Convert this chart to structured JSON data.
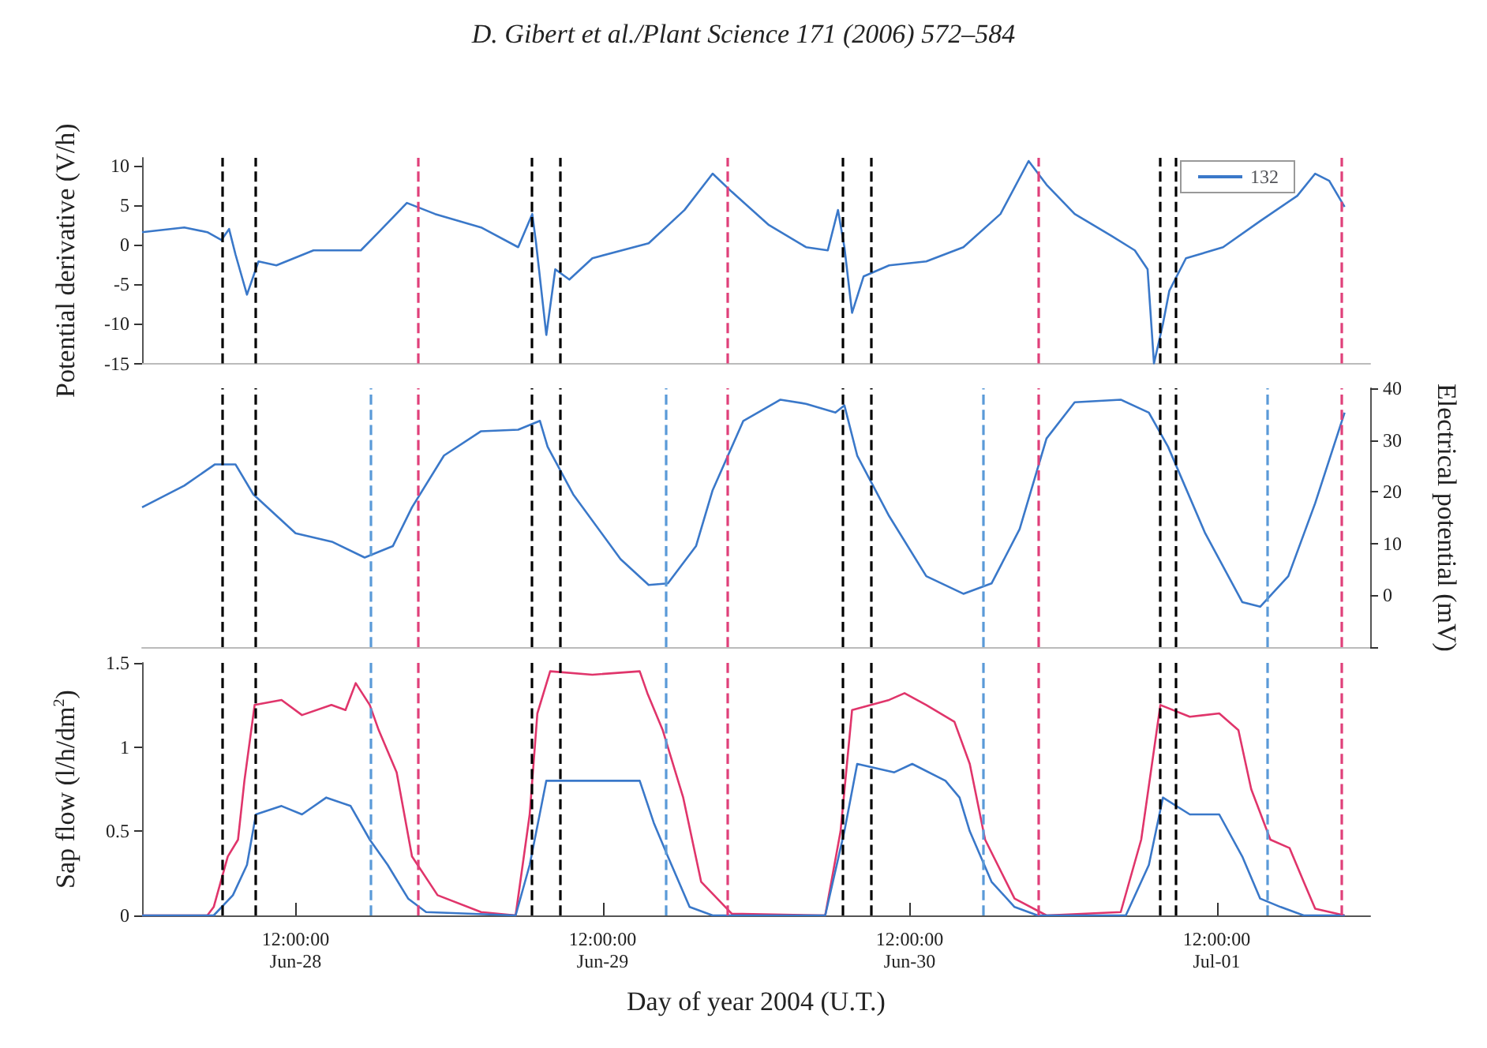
{
  "chart_data": [
    {
      "type": "line",
      "title": "D. Gibert et al./Plant Science 171 (2006) 572–584",
      "ylabel": "Potential derivative (V/h)",
      "xlim": [
        "2004-06-28T00:00",
        "2004-07-02T00:00"
      ],
      "ylim": [
        -15,
        11
      ],
      "yticks": [
        -15,
        -10,
        -5,
        0,
        5,
        10
      ],
      "tick_labels": "y",
      "legend": "top right",
      "x": [
        "2004-06-28T00:00",
        "2004-06-28T03:18",
        "2004-06-28T05:06",
        "2004-06-28T06:12",
        "2004-06-28T06:48",
        "2004-06-28T07:18",
        "2004-06-28T08:12",
        "2004-06-28T09:06",
        "2004-06-28T10:30",
        "2004-06-28T13:24",
        "2004-06-28T17:06",
        "2004-06-28T18:30",
        "2004-06-28T20:42",
        "2004-06-28T22:54",
        "2004-06-29T02:30",
        "2004-06-29T05:24",
        "2004-06-29T06:30",
        "2004-06-29T06:48",
        "2004-06-29T07:36",
        "2004-06-29T08:18",
        "2004-06-29T09:24",
        "2004-06-29T11:12",
        "2004-06-29T15:36",
        "2004-06-29T18:24",
        "2004-06-29T20:36",
        "2004-06-29T22:06",
        "2004-06-30T01:00",
        "2004-06-30T03:54",
        "2004-06-30T05:36",
        "2004-06-30T06:24",
        "2004-06-30T06:54",
        "2004-06-30T07:30",
        "2004-06-30T08:24",
        "2004-06-30T10:24",
        "2004-06-30T13:18",
        "2004-06-30T16:12",
        "2004-06-30T19:06",
        "2004-06-30T21:18",
        "2004-06-30T22:42",
        "2004-07-01T00:54",
        "2004-07-01T03:48",
        "2004-07-01T05:36",
        "2004-07-01T06:36",
        "2004-07-01T07:06",
        "2004-07-01T07:48",
        "2004-07-01T08:18",
        "2004-07-01T09:36",
        "2004-07-01T12:30",
        "2004-07-01T15:24",
        "2004-07-01T18:18",
        "2004-07-01T19:42",
        "2004-07-01T20:48",
        "2004-07-01T22:00"
      ],
      "series": [
        {
          "name": "132",
          "color": "#3a78c9",
          "values": [
            1.6,
            2.2,
            1.6,
            0.6,
            2.0,
            -1.2,
            -6.3,
            -2.1,
            -2.6,
            -0.7,
            -0.7,
            1.6,
            5.3,
            3.9,
            2.2,
            -0.3,
            3.9,
            0.2,
            -11.4,
            -3.1,
            -4.4,
            -1.7,
            0.2,
            4.4,
            9.0,
            6.7,
            2.5,
            -0.3,
            -0.7,
            4.4,
            -0.3,
            -8.6,
            -4.0,
            -2.6,
            -2.1,
            -0.3,
            3.9,
            10.6,
            7.6,
            3.9,
            1.1,
            -0.7,
            -3.1,
            -15,
            -10,
            -5.8,
            -1.7,
            -0.3,
            3.0,
            6.2,
            9.0,
            8.1,
            4.8
          ]
        }
      ],
      "ref_lines": [
        {
          "axis": "x",
          "value": "2004-06-28T06:18",
          "color": "#000000",
          "line_style": "dashed"
        },
        {
          "axis": "x",
          "value": "2004-06-28T08:48",
          "color": "#000000",
          "line_style": "dashed"
        },
        {
          "axis": "x",
          "value": "2004-06-29T06:30",
          "color": "#000000",
          "line_style": "dashed"
        },
        {
          "axis": "x",
          "value": "2004-06-29T08:42",
          "color": "#000000",
          "line_style": "dashed"
        },
        {
          "axis": "x",
          "value": "2004-06-30T06:42",
          "color": "#000000",
          "line_style": "dashed"
        },
        {
          "axis": "x",
          "value": "2004-06-30T09:00",
          "color": "#000000",
          "line_style": "dashed"
        },
        {
          "axis": "x",
          "value": "2004-07-01T07:30",
          "color": "#000000",
          "line_style": "dashed"
        },
        {
          "axis": "x",
          "value": "2004-07-01T08:48",
          "color": "#000000",
          "line_style": "dashed"
        },
        {
          "axis": "x",
          "value": "2004-06-28T21:36",
          "color": "#e0407a",
          "line_style": "dashed"
        },
        {
          "axis": "x",
          "value": "2004-06-29T21:42",
          "color": "#e0407a",
          "line_style": "dashed"
        },
        {
          "axis": "x",
          "value": "2004-06-30T22:00",
          "color": "#e0407a",
          "line_style": "dashed"
        },
        {
          "axis": "x",
          "value": "2004-07-01T21:42",
          "color": "#e0407a",
          "line_style": "dashed"
        }
      ]
    },
    {
      "type": "line",
      "y2label": "Electrical potential (mV)",
      "xlim": [
        "2004-06-28T00:00",
        "2004-07-02T00:00"
      ],
      "y2lim": [
        -10,
        40
      ],
      "y2ticks": [
        {
          "value": -10,
          "label": null
        },
        0,
        10,
        20,
        30,
        40
      ],
      "tick_labels": "y",
      "x": [
        "2004-06-28T00:00",
        "2004-06-28T03:18",
        "2004-06-28T05:42",
        "2004-06-28T07:18",
        "2004-06-28T08:42",
        "2004-06-28T12:00",
        "2004-06-28T14:54",
        "2004-06-28T17:24",
        "2004-06-28T19:36",
        "2004-06-28T21:06",
        "2004-06-28T23:36",
        "2004-06-29T02:30",
        "2004-06-29T05:24",
        "2004-06-29T07:06",
        "2004-06-29T07:42",
        "2004-06-29T09:42",
        "2004-06-29T13:24",
        "2004-06-29T15:36",
        "2004-06-29T17:06",
        "2004-06-29T19:18",
        "2004-06-29T20:36",
        "2004-06-29T23:00",
        "2004-06-30T01:54",
        "2004-06-30T03:54",
        "2004-06-30T06:12",
        "2004-06-30T06:54",
        "2004-06-30T07:54",
        "2004-06-30T10:24",
        "2004-06-30T13:18",
        "2004-06-30T16:12",
        "2004-06-30T18:24",
        "2004-06-30T20:36",
        "2004-06-30T22:42",
        "2004-07-01T00:54",
        "2004-07-01T04:30",
        "2004-07-01T06:42",
        "2004-07-01T08:12",
        "2004-07-01T11:06",
        "2004-07-01T14:00",
        "2004-07-01T15:24",
        "2004-07-01T17:36",
        "2004-07-01T19:42",
        "2004-07-01T22:00"
      ],
      "series": [
        {
          "color": "#3a78c9",
          "axis": "y2",
          "values": [
            17,
            21.2,
            25.3,
            25.3,
            19.5,
            12,
            10.3,
            7.3,
            9.5,
            17,
            27,
            31.7,
            32,
            33.7,
            28.7,
            19.5,
            7,
            2,
            2.3,
            9.5,
            20.3,
            33.7,
            37.8,
            37,
            35.3,
            36.7,
            27,
            15.3,
            3.7,
            0.3,
            2.3,
            12.8,
            30.3,
            37.3,
            37.8,
            35.3,
            28.7,
            12,
            -1.3,
            -2.2,
            3.7,
            17.8,
            35.3
          ]
        }
      ],
      "ref_lines": [
        {
          "axis": "x",
          "value": "2004-06-28T06:18",
          "color": "#000000",
          "line_style": "dashed"
        },
        {
          "axis": "x",
          "value": "2004-06-28T08:48",
          "color": "#000000",
          "line_style": "dashed"
        },
        {
          "axis": "x",
          "value": "2004-06-29T06:30",
          "color": "#000000",
          "line_style": "dashed"
        },
        {
          "axis": "x",
          "value": "2004-06-29T08:42",
          "color": "#000000",
          "line_style": "dashed"
        },
        {
          "axis": "x",
          "value": "2004-06-30T06:42",
          "color": "#000000",
          "line_style": "dashed"
        },
        {
          "axis": "x",
          "value": "2004-06-30T09:00",
          "color": "#000000",
          "line_style": "dashed"
        },
        {
          "axis": "x",
          "value": "2004-07-01T07:30",
          "color": "#000000",
          "line_style": "dashed"
        },
        {
          "axis": "x",
          "value": "2004-07-01T08:48",
          "color": "#000000",
          "line_style": "dashed"
        },
        {
          "axis": "x",
          "value": "2004-06-28T21:36",
          "color": "#e0407a",
          "line_style": "dashed"
        },
        {
          "axis": "x",
          "value": "2004-06-29T21:42",
          "color": "#e0407a",
          "line_style": "dashed"
        },
        {
          "axis": "x",
          "value": "2004-06-30T22:00",
          "color": "#e0407a",
          "line_style": "dashed"
        },
        {
          "axis": "x",
          "value": "2004-07-01T21:42",
          "color": "#e0407a",
          "line_style": "dashed"
        },
        {
          "axis": "x",
          "value": "2004-06-28T17:54",
          "color": "#5a9ad8",
          "line_style": "dashed"
        },
        {
          "axis": "x",
          "value": "2004-06-29T16:54",
          "color": "#5a9ad8",
          "line_style": "dashed"
        },
        {
          "axis": "x",
          "value": "2004-06-30T17:42",
          "color": "#5a9ad8",
          "line_style": "dashed"
        },
        {
          "axis": "x",
          "value": "2004-07-01T15:54",
          "color": "#5a9ad8",
          "line_style": "dashed"
        }
      ]
    },
    {
      "type": "line",
      "xlabel": "Day of year 2004 (U.T.)",
      "ylabel": "Sap flow (l/h/dm$^{2}$)",
      "xlim": [
        "2004-06-28T00:00",
        "2004-07-02T00:00"
      ],
      "xticks": [
        {
          "value": "2004-06-28T12:00",
          "label": "12:00:00\nJun-28"
        },
        {
          "value": "2004-06-29T12:00",
          "label": "12:00:00\nJun-29"
        },
        {
          "value": "2004-06-30T12:00",
          "label": "12:00:00\nJun-30"
        },
        {
          "value": "2004-07-01T12:00",
          "label": "12:00:00\nJul-01"
        }
      ],
      "ylim": [
        0,
        1.5
      ],
      "yticks": [
        0.0,
        0.5,
        1.0,
        1.5
      ],
      "series": [
        {
          "color": "#e0356b",
          "x": [
            "2004-06-28T00:00",
            "2004-06-28T05:06",
            "2004-06-28T05:36",
            "2004-06-28T06:42",
            "2004-06-28T07:30",
            "2004-06-28T08:00",
            "2004-06-28T08:48",
            "2004-06-28T10:54",
            "2004-06-28T12:30",
            "2004-06-28T14:48",
            "2004-06-28T15:54",
            "2004-06-28T16:42",
            "2004-06-28T17:48",
            "2004-06-28T18:30",
            "2004-06-28T19:54",
            "2004-06-28T21:06",
            "2004-06-28T23:06",
            "2004-06-29T02:30",
            "2004-06-29T05:12",
            "2004-06-29T06:18",
            "2004-06-29T06:54",
            "2004-06-29T07:54",
            "2004-06-29T11:12",
            "2004-06-29T14:54",
            "2004-06-29T15:30",
            "2004-06-29T16:42",
            "2004-06-29T18:18",
            "2004-06-29T19:42",
            "2004-06-29T22:06",
            "2004-06-30T05:24",
            "2004-06-30T06:36",
            "2004-06-30T07:30",
            "2004-06-30T10:24",
            "2004-06-30T11:36",
            "2004-06-30T13:18",
            "2004-06-30T15:30",
            "2004-06-30T16:42",
            "2004-06-30T17:54",
            "2004-06-30T20:12",
            "2004-06-30T22:42",
            "2004-07-01T04:30",
            "2004-07-01T06:06",
            "2004-07-01T07:36",
            "2004-07-01T09:54",
            "2004-07-01T12:12",
            "2004-07-01T13:42",
            "2004-07-01T14:42",
            "2004-07-01T16:12",
            "2004-07-01T17:42",
            "2004-07-01T18:48",
            "2004-07-01T19:42",
            "2004-07-01T22:00"
          ],
          "values": [
            0,
            0,
            0.05,
            0.35,
            0.45,
            0.8,
            1.25,
            1.28,
            1.19,
            1.25,
            1.22,
            1.38,
            1.25,
            1.1,
            0.85,
            0.35,
            0.12,
            0.02,
            0,
            0.6,
            1.2,
            1.45,
            1.43,
            1.45,
            1.32,
            1.1,
            0.7,
            0.2,
            0.01,
            0,
            0.5,
            1.22,
            1.28,
            1.32,
            1.25,
            1.15,
            0.9,
            0.45,
            0.1,
            0,
            0.02,
            0.45,
            1.25,
            1.18,
            1.2,
            1.1,
            0.75,
            0.45,
            0.4,
            0.2,
            0.04,
            0
          ]
        },
        {
          "color": "#3a78c9",
          "x": [
            "2004-06-28T00:00",
            "2004-06-28T05:36",
            "2004-06-28T07:06",
            "2004-06-28T08:12",
            "2004-06-28T08:54",
            "2004-06-28T10:54",
            "2004-06-28T12:30",
            "2004-06-28T14:24",
            "2004-06-28T16:18",
            "2004-06-28T17:48",
            "2004-06-28T19:12",
            "2004-06-28T20:48",
            "2004-06-28T22:12",
            "2004-06-29T05:12",
            "2004-06-29T06:18",
            "2004-06-29T07:36",
            "2004-06-29T11:12",
            "2004-06-29T14:54",
            "2004-06-29T16:00",
            "2004-06-29T17:06",
            "2004-06-29T18:48",
            "2004-06-29T20:36",
            "2004-06-30T05:24",
            "2004-06-30T06:54",
            "2004-06-30T07:54",
            "2004-06-30T10:48",
            "2004-06-30T12:12",
            "2004-06-30T14:48",
            "2004-06-30T15:54",
            "2004-06-30T16:42",
            "2004-06-30T18:24",
            "2004-06-30T20:12",
            "2004-06-30T22:00",
            "2004-07-01T04:54",
            "2004-07-01T06:42",
            "2004-07-01T07:48",
            "2004-07-01T09:54",
            "2004-07-01T12:12",
            "2004-07-01T14:00",
            "2004-07-01T15:24",
            "2004-07-01T17:00",
            "2004-07-01T18:48",
            "2004-07-01T22:00"
          ],
          "values": [
            0,
            0,
            0.12,
            0.3,
            0.6,
            0.65,
            0.6,
            0.7,
            0.65,
            0.45,
            0.3,
            0.1,
            0.02,
            0,
            0.3,
            0.8,
            0.8,
            0.8,
            0.55,
            0.35,
            0.05,
            0,
            0,
            0.5,
            0.9,
            0.85,
            0.9,
            0.8,
            0.7,
            0.5,
            0.2,
            0.05,
            0,
            0,
            0.3,
            0.7,
            0.6,
            0.6,
            0.35,
            0.1,
            0.05,
            0,
            0
          ]
        }
      ],
      "ref_lines": [
        {
          "axis": "x",
          "value": "2004-06-28T06:18",
          "color": "#000000",
          "line_style": "dashed"
        },
        {
          "axis": "x",
          "value": "2004-06-28T08:48",
          "color": "#000000",
          "line_style": "dashed"
        },
        {
          "axis": "x",
          "value": "2004-06-29T06:30",
          "color": "#000000",
          "line_style": "dashed"
        },
        {
          "axis": "x",
          "value": "2004-06-29T08:42",
          "color": "#000000",
          "line_style": "dashed"
        },
        {
          "axis": "x",
          "value": "2004-06-30T06:42",
          "color": "#000000",
          "line_style": "dashed"
        },
        {
          "axis": "x",
          "value": "2004-06-30T09:00",
          "color": "#000000",
          "line_style": "dashed"
        },
        {
          "axis": "x",
          "value": "2004-07-01T07:30",
          "color": "#000000",
          "line_style": "dashed"
        },
        {
          "axis": "x",
          "value": "2004-07-01T08:48",
          "color": "#000000",
          "line_style": "dashed"
        },
        {
          "axis": "x",
          "value": "2004-06-28T21:36",
          "color": "#e0407a",
          "line_style": "dashed"
        },
        {
          "axis": "x",
          "value": "2004-06-29T21:42",
          "color": "#e0407a",
          "line_style": "dashed"
        },
        {
          "axis": "x",
          "value": "2004-06-30T22:00",
          "color": "#e0407a",
          "line_style": "dashed"
        },
        {
          "axis": "x",
          "value": "2004-07-01T21:42",
          "color": "#e0407a",
          "line_style": "dashed"
        },
        {
          "axis": "x",
          "value": "2004-06-28T17:54",
          "color": "#5a9ad8",
          "line_style": "dashed"
        },
        {
          "axis": "x",
          "value": "2004-06-29T16:54",
          "color": "#5a9ad8",
          "line_style": "dashed"
        },
        {
          "axis": "x",
          "value": "2004-06-30T17:42",
          "color": "#5a9ad8",
          "line_style": "dashed"
        },
        {
          "axis": "x",
          "value": "2004-07-01T15:54",
          "color": "#5a9ad8",
          "line_style": "dashed"
        }
      ]
    }
  ]
}
